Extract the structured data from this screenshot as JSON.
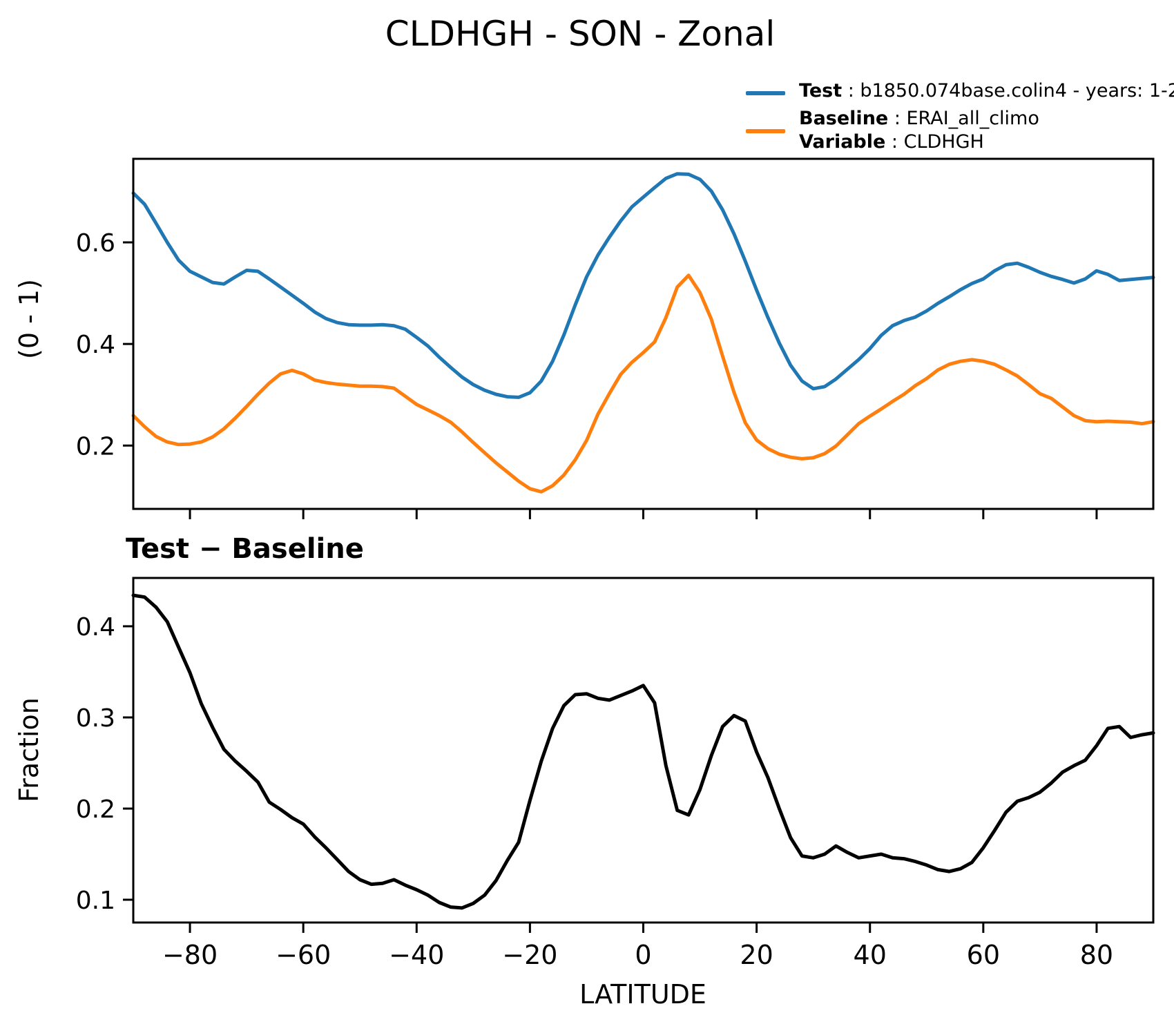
{
  "title": "CLDHGH - SON - Zonal",
  "legend": {
    "sep": " : ",
    "test_label": "Test",
    "test_value": "b1850.074base.colin4 - years: 1-2",
    "baseline_label": "Baseline",
    "baseline_value": "ERAI_all_climo",
    "variable_label": "Variable",
    "variable_value": "CLDHGH"
  },
  "colors": {
    "test": "#1f77b4",
    "baseline": "#ff7f0e",
    "diff": "#000000",
    "axis": "#000000"
  },
  "panel2_header": "Test − Baseline",
  "chart_data": [
    {
      "type": "line",
      "title": "CLDHGH - SON - Zonal",
      "xlabel": "",
      "ylabel": "(0 - 1)",
      "xlim": [
        -90,
        90
      ],
      "ylim": [
        0.0753,
        0.7645
      ],
      "xticks": [
        -80,
        -60,
        -40,
        -20,
        0,
        20,
        40,
        60,
        80
      ],
      "xtick_labels": [],
      "yticks": [
        0.2,
        0.4,
        0.6
      ],
      "ytick_labels": [
        "0.2",
        "0.4",
        "0.6"
      ],
      "grid": false,
      "legend_position": "top-right-outside",
      "x": [
        -90,
        -88,
        -86,
        -84,
        -82,
        -80,
        -78,
        -76,
        -74,
        -72,
        -70,
        -68,
        -66,
        -64,
        -62,
        -60,
        -58,
        -56,
        -54,
        -52,
        -50,
        -48,
        -46,
        -44,
        -42,
        -40,
        -38,
        -36,
        -34,
        -32,
        -30,
        -28,
        -26,
        -24,
        -22,
        -20,
        -18,
        -16,
        -14,
        -12,
        -10,
        -8,
        -6,
        -4,
        -2,
        0,
        2,
        4,
        6,
        8,
        10,
        12,
        14,
        16,
        18,
        20,
        22,
        24,
        26,
        28,
        30,
        32,
        34,
        36,
        38,
        40,
        42,
        44,
        46,
        48,
        50,
        52,
        54,
        56,
        58,
        60,
        62,
        64,
        66,
        68,
        70,
        72,
        74,
        76,
        78,
        80,
        82,
        84,
        86,
        88,
        90
      ],
      "series": [
        {
          "name": "Test",
          "color": "#1f77b4",
          "values": [
            0.697,
            0.675,
            0.638,
            0.6,
            0.565,
            0.543,
            0.532,
            0.521,
            0.518,
            0.532,
            0.545,
            0.543,
            0.528,
            0.512,
            0.496,
            0.48,
            0.463,
            0.45,
            0.442,
            0.438,
            0.437,
            0.437,
            0.438,
            0.436,
            0.429,
            0.413,
            0.396,
            0.374,
            0.354,
            0.335,
            0.32,
            0.309,
            0.301,
            0.296,
            0.295,
            0.304,
            0.327,
            0.366,
            0.418,
            0.477,
            0.532,
            0.575,
            0.61,
            0.642,
            0.67,
            0.689,
            0.708,
            0.726,
            0.735,
            0.734,
            0.724,
            0.701,
            0.664,
            0.617,
            0.563,
            0.506,
            0.452,
            0.402,
            0.358,
            0.327,
            0.312,
            0.316,
            0.331,
            0.35,
            0.369,
            0.391,
            0.417,
            0.436,
            0.446,
            0.453,
            0.465,
            0.48,
            0.493,
            0.507,
            0.519,
            0.528,
            0.544,
            0.556,
            0.559,
            0.551,
            0.541,
            0.533,
            0.527,
            0.52,
            0.528,
            0.544,
            0.537,
            0.525,
            0.527,
            0.529,
            0.531
          ]
        },
        {
          "name": "Baseline",
          "color": "#ff7f0e",
          "values": [
            0.259,
            0.237,
            0.218,
            0.207,
            0.202,
            0.203,
            0.207,
            0.217,
            0.233,
            0.254,
            0.277,
            0.301,
            0.323,
            0.341,
            0.348,
            0.341,
            0.329,
            0.324,
            0.321,
            0.319,
            0.317,
            0.317,
            0.316,
            0.313,
            0.297,
            0.281,
            0.27,
            0.259,
            0.246,
            0.227,
            0.206,
            0.186,
            0.166,
            0.148,
            0.13,
            0.115,
            0.109,
            0.121,
            0.142,
            0.172,
            0.21,
            0.262,
            0.302,
            0.34,
            0.364,
            0.383,
            0.404,
            0.452,
            0.512,
            0.535,
            0.501,
            0.449,
            0.376,
            0.305,
            0.245,
            0.211,
            0.194,
            0.183,
            0.177,
            0.174,
            0.176,
            0.184,
            0.199,
            0.221,
            0.243,
            0.258,
            0.272,
            0.287,
            0.301,
            0.318,
            0.332,
            0.349,
            0.36,
            0.366,
            0.369,
            0.366,
            0.36,
            0.349,
            0.337,
            0.32,
            0.302,
            0.293,
            0.276,
            0.259,
            0.249,
            0.247,
            0.248,
            0.247,
            0.246,
            0.243,
            0.247
          ]
        }
      ]
    },
    {
      "type": "line",
      "title": "Test − Baseline",
      "xlabel": "LATITUDE",
      "ylabel": "Fraction",
      "xlim": [
        -90,
        90
      ],
      "ylim": [
        0.075,
        0.453
      ],
      "xticks": [
        -80,
        -60,
        -40,
        -20,
        0,
        20,
        40,
        60,
        80
      ],
      "xtick_labels": [
        "−80",
        "−60",
        "−40",
        "−20",
        "0",
        "20",
        "40",
        "60",
        "80"
      ],
      "yticks": [
        0.1,
        0.2,
        0.3,
        0.4
      ],
      "ytick_labels": [
        "0.1",
        "0.2",
        "0.3",
        "0.4"
      ],
      "grid": false,
      "x": [
        -90,
        -88,
        -86,
        -84,
        -82,
        -80,
        -78,
        -76,
        -74,
        -72,
        -70,
        -68,
        -66,
        -64,
        -62,
        -60,
        -58,
        -56,
        -54,
        -52,
        -50,
        -48,
        -46,
        -44,
        -42,
        -40,
        -38,
        -36,
        -34,
        -32,
        -30,
        -28,
        -26,
        -24,
        -22,
        -20,
        -18,
        -16,
        -14,
        -12,
        -10,
        -8,
        -6,
        -4,
        -2,
        0,
        2,
        4,
        6,
        8,
        10,
        12,
        14,
        16,
        18,
        20,
        22,
        24,
        26,
        28,
        30,
        32,
        34,
        36,
        38,
        40,
        42,
        44,
        46,
        48,
        50,
        52,
        54,
        56,
        58,
        60,
        62,
        64,
        66,
        68,
        70,
        72,
        74,
        76,
        78,
        80,
        82,
        84,
        86,
        88,
        90
      ],
      "series": [
        {
          "name": "Test minus Baseline",
          "color": "#000000",
          "values": [
            0.434,
            0.432,
            0.421,
            0.405,
            0.377,
            0.349,
            0.315,
            0.289,
            0.265,
            0.252,
            0.241,
            0.229,
            0.207,
            0.199,
            0.19,
            0.183,
            0.169,
            0.157,
            0.144,
            0.131,
            0.122,
            0.117,
            0.118,
            0.122,
            0.116,
            0.111,
            0.105,
            0.097,
            0.092,
            0.091,
            0.096,
            0.105,
            0.121,
            0.143,
            0.163,
            0.209,
            0.252,
            0.288,
            0.313,
            0.325,
            0.326,
            0.321,
            0.319,
            0.324,
            0.329,
            0.335,
            0.316,
            0.247,
            0.198,
            0.193,
            0.221,
            0.258,
            0.29,
            0.302,
            0.296,
            0.262,
            0.234,
            0.2,
            0.168,
            0.148,
            0.146,
            0.15,
            0.159,
            0.152,
            0.146,
            0.148,
            0.15,
            0.146,
            0.145,
            0.142,
            0.138,
            0.133,
            0.131,
            0.134,
            0.141,
            0.157,
            0.176,
            0.196,
            0.208,
            0.212,
            0.218,
            0.228,
            0.24,
            0.247,
            0.253,
            0.269,
            0.288,
            0.29,
            0.278,
            0.281,
            0.283
          ]
        }
      ]
    }
  ]
}
